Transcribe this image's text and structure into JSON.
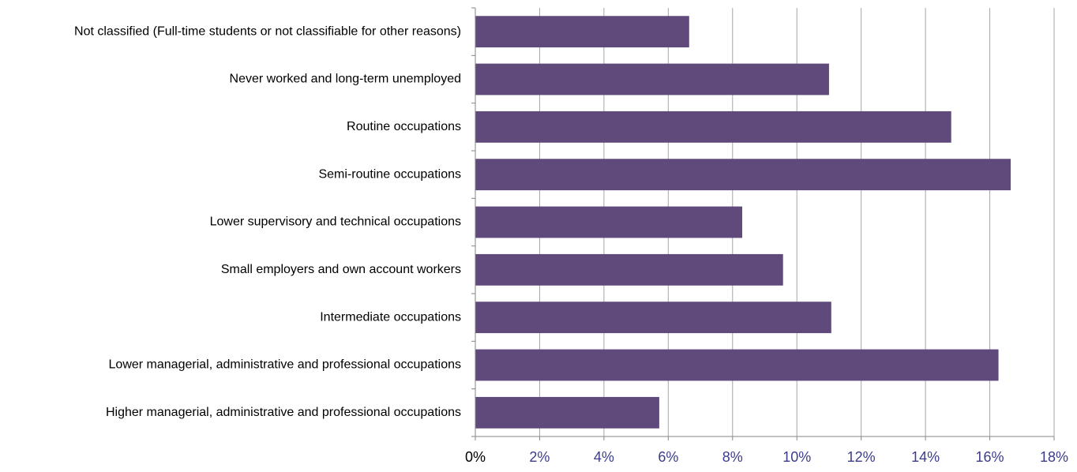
{
  "chart_data": {
    "type": "bar",
    "orientation": "horizontal",
    "categories": [
      "Not classified (Full-time students or not classifiable for other reasons)",
      "Never worked and long-term unemployed",
      "Routine occupations",
      "Semi-routine occupations",
      "Lower supervisory and technical occupations",
      "Small employers and own account workers",
      "Intermediate occupations",
      "Lower managerial, administrative and professional occupations",
      "Higher managerial, administrative and professional occupations"
    ],
    "values": [
      6.65,
      11.0,
      14.8,
      16.65,
      8.3,
      9.57,
      11.07,
      16.27,
      5.72
    ],
    "xlim": [
      0,
      18
    ],
    "x_ticks": [
      "0%",
      "2%",
      "4%",
      "6%",
      "8%",
      "10%",
      "12%",
      "14%",
      "16%",
      "18%"
    ],
    "grid": "vertical",
    "legend": "none",
    "colors": {
      "bar": "#604a7b",
      "grid": "#a6a6a6",
      "axis": "#868686",
      "tick_zero": "#000000",
      "tick_other": "#3c3c8c"
    }
  }
}
